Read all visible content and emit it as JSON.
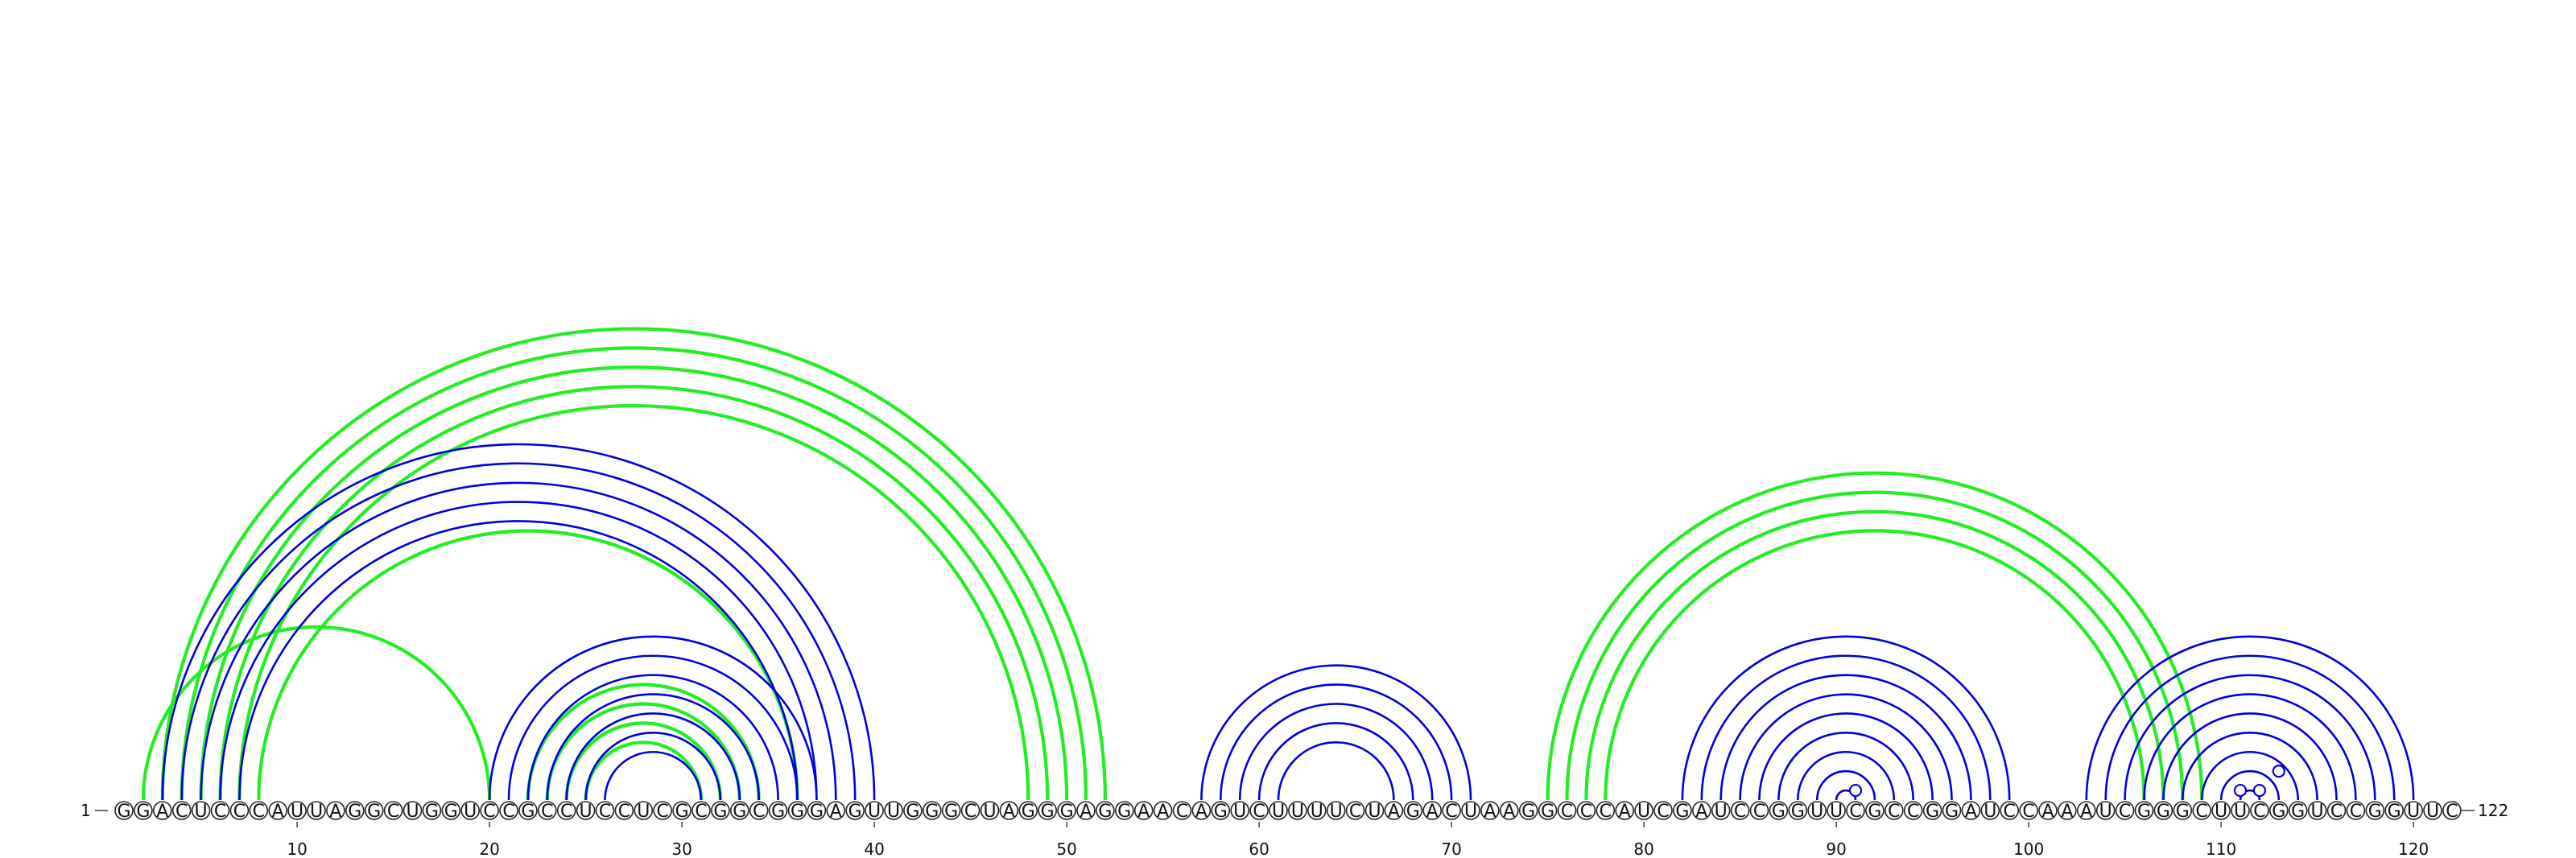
{
  "sequence": "GGACUCCCAUUAGGCUGGUCCGCCUCCUCGCGGCGGGAGUUGGGCUAGGGAGGAACAGUCUUUUCUAGACUAAGGCCCAUCGAUCCGGUUCGCCGGAUCCAAAUCGGGCUUCGGUCCGGUUC",
  "start_label": "1",
  "end_label": "122",
  "ticks": [
    10,
    20,
    30,
    40,
    50,
    60,
    70,
    80,
    90,
    100,
    110,
    120
  ],
  "colors": {
    "structure_a": "#0000e0",
    "structure_b": "#22ee22"
  },
  "arcs": {
    "structure_a": [
      [
        3,
        40
      ],
      [
        4,
        39
      ],
      [
        5,
        38
      ],
      [
        6,
        37
      ],
      [
        7,
        36
      ],
      [
        20,
        37
      ],
      [
        21,
        36
      ],
      [
        22,
        35
      ],
      [
        23,
        34
      ],
      [
        24,
        33
      ],
      [
        25,
        32
      ],
      [
        26,
        31
      ],
      [
        57,
        71
      ],
      [
        58,
        70
      ],
      [
        59,
        69
      ],
      [
        60,
        68
      ],
      [
        61,
        67
      ],
      [
        82,
        99
      ],
      [
        83,
        98
      ],
      [
        84,
        97
      ],
      [
        85,
        96
      ],
      [
        86,
        95
      ],
      [
        87,
        94
      ],
      [
        88,
        93
      ],
      [
        89,
        92
      ],
      [
        90,
        91
      ],
      [
        103,
        120
      ],
      [
        104,
        119
      ],
      [
        105,
        118
      ],
      [
        106,
        117
      ],
      [
        107,
        116
      ],
      [
        108,
        115
      ],
      [
        109,
        114
      ],
      [
        110,
        113
      ],
      [
        111,
        112
      ]
    ],
    "structure_b": [
      [
        2,
        20
      ],
      [
        3,
        52
      ],
      [
        4,
        51
      ],
      [
        5,
        50
      ],
      [
        6,
        49
      ],
      [
        7,
        48
      ],
      [
        8,
        36
      ],
      [
        22,
        34
      ],
      [
        23,
        33
      ],
      [
        24,
        32
      ],
      [
        25,
        31
      ],
      [
        75,
        109
      ],
      [
        76,
        108
      ],
      [
        77,
        107
      ],
      [
        78,
        106
      ]
    ]
  },
  "loop_markers": [
    91,
    111,
    112,
    113
  ]
}
